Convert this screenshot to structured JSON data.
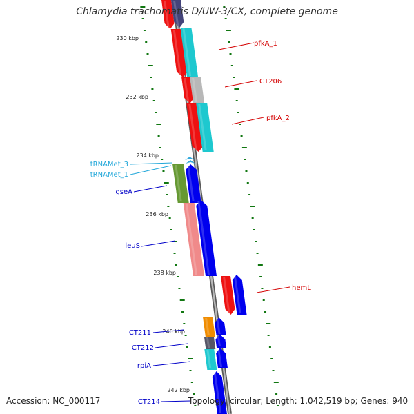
{
  "title": "Chlamydia trachomatis D/UW-3/CX, complete genome",
  "accession_text": "Accession: NC_000117",
  "summary_text": "Topology: circular; Length: 1,042,519 bp; Genes: 940",
  "colors": {
    "backbone": "#888888",
    "ticks": "#117711",
    "red_label": "#d40000",
    "blue_label": "#0000c8",
    "cyan_label": "#1fa6d9"
  },
  "scale_labels": [
    "230 kbp",
    "232 kbp",
    "234 kbp",
    "236 kbp",
    "238 kbp",
    "240 kbp",
    "242 kbp"
  ],
  "gene_labels": [
    {
      "text": "pfkA_1",
      "color": "red"
    },
    {
      "text": "CT206",
      "color": "red"
    },
    {
      "text": "pfkA_2",
      "color": "red"
    },
    {
      "text": "tRNAMet_3",
      "color": "cyan"
    },
    {
      "text": "tRNAMet_1",
      "color": "cyan"
    },
    {
      "text": "gseA",
      "color": "blue"
    },
    {
      "text": "leuS",
      "color": "blue"
    },
    {
      "text": "hemL",
      "color": "red"
    },
    {
      "text": "CT211",
      "color": "blue"
    },
    {
      "text": "CT212",
      "color": "blue"
    },
    {
      "text": "rpiA",
      "color": "blue"
    },
    {
      "text": "CT214",
      "color": "blue"
    }
  ]
}
